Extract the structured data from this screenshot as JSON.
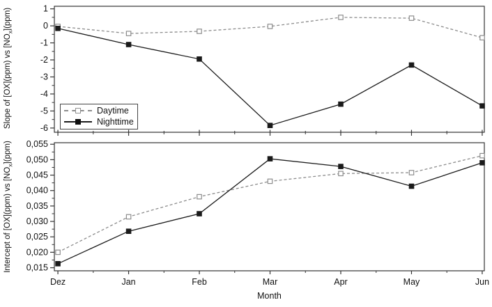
{
  "figure": {
    "xlabel": "Month",
    "months": [
      "Dez",
      "Jan",
      "Feb",
      "Mar",
      "Apr",
      "May",
      "Jun"
    ],
    "legend": {
      "daytime": "Daytime",
      "nighttime": "Nighttime"
    },
    "colors": {
      "daytime": "#8c8c8c",
      "nighttime": "#1a1a1a",
      "axis": "#333333",
      "background": "#ffffff"
    }
  },
  "chart_data": [
    {
      "type": "line",
      "panel": "top",
      "ylabel": {
        "prefix": "Slope of [OX](ppm) vs [NO",
        "sub": "x",
        "suffix": "](ppm)"
      },
      "categories": [
        "Dez",
        "Jan",
        "Feb",
        "Mar",
        "Apr",
        "May",
        "Jun"
      ],
      "ylim": [
        -6.25,
        1.15
      ],
      "yticks": [
        1,
        0,
        -1,
        -2,
        -3,
        -4,
        -5,
        -6
      ],
      "ytick_labels": [
        "1",
        "0",
        "-1",
        "-2",
        "-3",
        "-4",
        "-5",
        "-6"
      ],
      "grid": false,
      "legend_position": "lower-left",
      "series": [
        {
          "name": "Daytime",
          "style": "dashed",
          "marker": "open-square",
          "color": "#8c8c8c",
          "values": [
            -0.03,
            -0.45,
            -0.32,
            -0.03,
            0.5,
            0.45,
            -0.7
          ]
        },
        {
          "name": "Nighttime",
          "style": "solid",
          "marker": "filled-square",
          "color": "#1a1a1a",
          "values": [
            -0.15,
            -1.1,
            -1.95,
            -5.85,
            -4.6,
            -2.3,
            -4.7
          ]
        }
      ]
    },
    {
      "type": "line",
      "panel": "bottom",
      "ylabel": {
        "prefix": "Intercept of [OX](ppm) vs [NO",
        "sub": "x",
        "suffix": "](ppm)"
      },
      "categories": [
        "Dez",
        "Jan",
        "Feb",
        "Mar",
        "Apr",
        "May",
        "Jun"
      ],
      "xlabel": "Month",
      "ylim": [
        0.014,
        0.0555
      ],
      "yticks": [
        0.055,
        0.05,
        0.045,
        0.04,
        0.035,
        0.03,
        0.025,
        0.02,
        0.015
      ],
      "ytick_labels": [
        "0,055",
        "0,050",
        "0,045",
        "0,040",
        "0,035",
        "0,030",
        "0,025",
        "0,020",
        "0,015"
      ],
      "grid": false,
      "series": [
        {
          "name": "Daytime",
          "style": "dashed",
          "marker": "open-square",
          "color": "#8c8c8c",
          "values": [
            0.02,
            0.0315,
            0.038,
            0.043,
            0.0455,
            0.0458,
            0.0513
          ]
        },
        {
          "name": "Nighttime",
          "style": "solid",
          "marker": "filled-square",
          "color": "#1a1a1a",
          "values": [
            0.0163,
            0.0268,
            0.0325,
            0.0503,
            0.0478,
            0.0414,
            0.049
          ]
        }
      ]
    }
  ]
}
